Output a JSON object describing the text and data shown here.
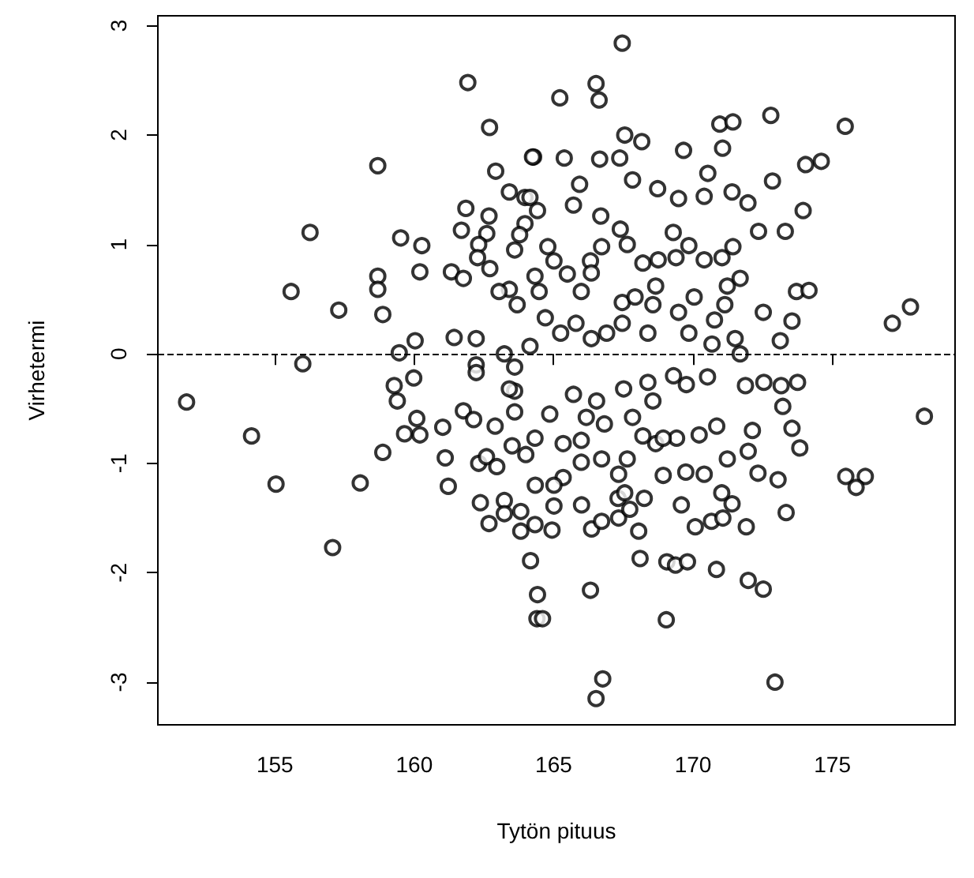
{
  "chart_data": {
    "type": "scatter",
    "xlabel": "Tytön pituus",
    "ylabel": "Virhetermi",
    "xlim": [
      150.8,
      179.4
    ],
    "ylim": [
      -3.39,
      3.09
    ],
    "xticks": [
      155,
      160,
      165,
      170,
      175
    ],
    "yticks": [
      -3,
      -2,
      -1,
      0,
      1,
      2,
      3
    ],
    "marker": "circle",
    "ref_lines": [
      {
        "axis": "y",
        "value": 0,
        "line_style": "dashed",
        "color": "#000000"
      }
    ],
    "series": [
      {
        "color": "#000000",
        "x": [
          161.92,
          162.7,
          158.69,
          156.26,
          155.58,
          157.29,
          159.51,
          160.27,
          160.2,
          158.69,
          158.69,
          158.87,
          156.0,
          161.33,
          161.76,
          161.69,
          161.85,
          162.92,
          164.28,
          162.68,
          162.6,
          162.71,
          163.41,
          160.03,
          159.46,
          161.43,
          162.22,
          163.97,
          163.6,
          163.69,
          167.46,
          166.52,
          166.63,
          165.22,
          167.55,
          168.16,
          164.24,
          165.38,
          166.65,
          167.37,
          170.96,
          171.43,
          172.79,
          175.46,
          174.04,
          174.6,
          169.66,
          171.06,
          172.85,
          173.95,
          169.48,
          170.53,
          171.4,
          171.97,
          170.4,
          167.83,
          168.73,
          165.93,
          165.71,
          166.69,
          172.35,
          173.31,
          171.43,
          169.29,
          169.85,
          173.71,
          174.16,
          172.52,
          173.55,
          173.13,
          177.15,
          177.8,
          151.83,
          154.16,
          155.04,
          157.07,
          158.06,
          158.87,
          159.28,
          159.98,
          159.39,
          160.09,
          159.65,
          160.2,
          161.22,
          161.11,
          162.68,
          162.37,
          163.82,
          164.17,
          164.42,
          164.4,
          164.6,
          162.31,
          163.23,
          161.76,
          161.02,
          163.6,
          164.34,
          162.9,
          166.76,
          166.52,
          172.94,
          169.04,
          166.32,
          171.98,
          172.52,
          170.84,
          168.1,
          169.06,
          169.37,
          169.8,
          166.36,
          166.72,
          168.05,
          170.08,
          170.66,
          171.07,
          171.91,
          173.34,
          164.94,
          164.33,
          166.0,
          167.33,
          167.73,
          167.31,
          169.58,
          171.4,
          171.03,
          168.93,
          168.25,
          169.74,
          170.4,
          172.33,
          173.05,
          167.33,
          165.34,
          165.01,
          165.99,
          166.72,
          167.64,
          168.66,
          169.41,
          170.22,
          170.85,
          171.98,
          171.23,
          172.13,
          173.22,
          173.55,
          173.83,
          172.54,
          173.16,
          173.75,
          171.88,
          170.52,
          164.86,
          165.71,
          166.17,
          166.82,
          167.83,
          168.56,
          169.3,
          169.76,
          168.93,
          168.2,
          164.33,
          165.34,
          165.99,
          166.54,
          167.51,
          168.38,
          165.01,
          167.55,
          175.48,
          176.18,
          175.85,
          178.3,
          164.33,
          164.79,
          165.01,
          164.48,
          165.49,
          165.99,
          166.32,
          166.72,
          167.39,
          167.64,
          168.2,
          168.75,
          169.39,
          170.04,
          170.4,
          171.04,
          171.23,
          171.69,
          171.14,
          170.77,
          171.51,
          170.68,
          171.69,
          164.7,
          165.25,
          165.8,
          166.35,
          166.9,
          167.46,
          167.46,
          167.92,
          168.56,
          168.66,
          169.48,
          169.85,
          168.38,
          166.35,
          164.15,
          164.42,
          163.23,
          162.22,
          163.6,
          164.15,
          163.04,
          163.97,
          163.41,
          163.78,
          162.31,
          162.27,
          162.22,
          163.41,
          163.6,
          162.13,
          164.0,
          163.51,
          162.59,
          162.96,
          163.23,
          163.82
        ],
        "values": [
          2.48,
          2.07,
          1.72,
          1.11,
          0.57,
          0.4,
          1.06,
          0.99,
          0.75,
          0.71,
          0.59,
          0.36,
          -0.09,
          0.75,
          0.69,
          1.13,
          1.33,
          1.67,
          1.8,
          1.26,
          1.1,
          0.78,
          0.59,
          0.12,
          0.01,
          0.15,
          -0.1,
          1.43,
          0.95,
          0.45,
          2.84,
          2.47,
          2.32,
          2.34,
          2.0,
          1.94,
          1.8,
          1.79,
          1.78,
          1.79,
          2.1,
          2.12,
          2.18,
          2.08,
          1.73,
          1.76,
          1.86,
          1.88,
          1.58,
          1.31,
          1.42,
          1.65,
          1.48,
          1.38,
          1.44,
          1.59,
          1.51,
          1.55,
          1.36,
          1.26,
          1.12,
          1.12,
          0.98,
          1.11,
          0.99,
          0.57,
          0.58,
          0.38,
          0.3,
          0.12,
          0.28,
          0.43,
          -0.44,
          -0.75,
          -1.19,
          -1.77,
          -1.18,
          -0.9,
          -0.29,
          -0.22,
          -0.43,
          -0.59,
          -0.73,
          -0.74,
          -1.21,
          -0.95,
          -1.55,
          -1.36,
          -1.62,
          -1.89,
          -2.2,
          -2.42,
          -2.42,
          -1.0,
          -1.34,
          -0.52,
          -0.67,
          -0.34,
          -1.2,
          -0.66,
          -2.97,
          -3.15,
          -3.0,
          -2.43,
          -2.16,
          -2.07,
          -2.15,
          -1.97,
          -1.87,
          -1.9,
          -1.93,
          -1.9,
          -1.6,
          -1.53,
          -1.62,
          -1.58,
          -1.53,
          -1.5,
          -1.58,
          -1.45,
          -1.61,
          -1.56,
          -1.38,
          -1.5,
          -1.42,
          -1.32,
          -1.38,
          -1.37,
          -1.27,
          -1.11,
          -1.32,
          -1.08,
          -1.1,
          -1.09,
          -1.15,
          -1.1,
          -1.13,
          -1.39,
          -0.99,
          -0.96,
          -0.96,
          -0.82,
          -0.77,
          -0.74,
          -0.66,
          -0.89,
          -0.96,
          -0.7,
          -0.48,
          -0.68,
          -0.86,
          -0.26,
          -0.29,
          -0.26,
          -0.29,
          -0.21,
          -0.55,
          -0.37,
          -0.58,
          -0.64,
          -0.58,
          -0.43,
          -0.2,
          -0.28,
          -0.77,
          -0.75,
          -0.77,
          -0.82,
          -0.79,
          -0.43,
          -0.32,
          -0.26,
          -1.2,
          -1.27,
          -1.12,
          -1.12,
          -1.22,
          -0.57,
          0.71,
          0.98,
          0.85,
          0.57,
          0.73,
          0.57,
          0.85,
          0.98,
          1.14,
          1.0,
          0.83,
          0.86,
          0.88,
          0.52,
          0.86,
          0.88,
          0.62,
          0.69,
          0.45,
          0.31,
          0.14,
          0.09,
          0.0,
          0.33,
          0.19,
          0.28,
          0.14,
          0.19,
          0.47,
          0.28,
          0.52,
          0.45,
          0.62,
          0.38,
          0.19,
          0.19,
          0.74,
          1.43,
          1.31,
          0.0,
          0.14,
          -0.12,
          0.07,
          0.57,
          1.19,
          1.48,
          1.09,
          1.0,
          0.88,
          -0.17,
          -0.32,
          -0.53,
          -0.6,
          -0.92,
          -0.84,
          -0.94,
          -1.03,
          -1.46,
          -1.44
        ]
      }
    ]
  }
}
